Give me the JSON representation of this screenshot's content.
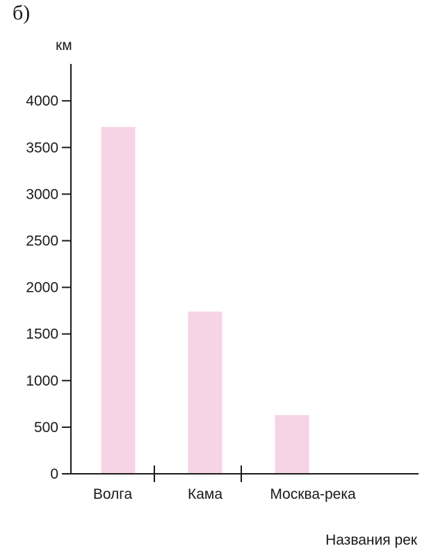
{
  "panel_label": "б)",
  "chart_data": {
    "type": "bar",
    "title": "",
    "ylabel": "км",
    "xlabel": "Названия рек",
    "categories": [
      "Волга",
      "Кама",
      "Москва-река"
    ],
    "values": [
      3720,
      1740,
      630
    ],
    "ylim": [
      0,
      4200
    ],
    "yticks": [
      0,
      500,
      1000,
      1500,
      2000,
      2500,
      3000,
      3500,
      4000
    ],
    "grid": false,
    "legend": "none",
    "colors": {
      "bar": "#f7d3e6",
      "axis": "#1a1a1a",
      "text": "#1a1a1a"
    }
  }
}
